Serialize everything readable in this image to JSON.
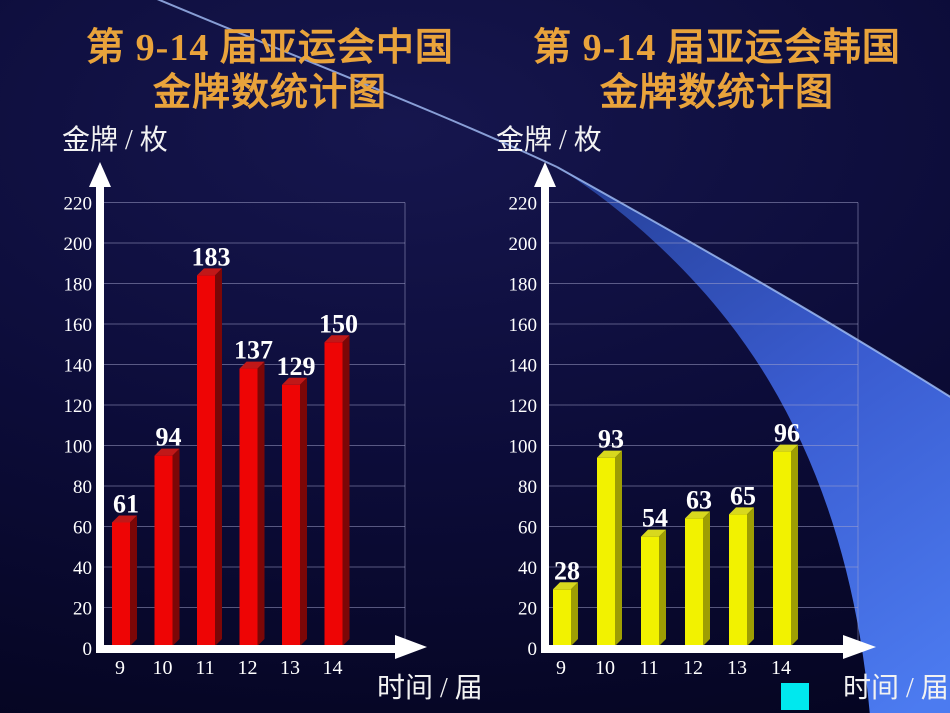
{
  "chart_data": [
    {
      "type": "bar",
      "title": "第 9-14 届亚运会中国金牌数统计图",
      "title_lines": [
        "第 9-14 届亚运会中国",
        "金牌数统计图"
      ],
      "ylabel": "金牌 / 枚",
      "xlabel": "时间 / 届",
      "categories": [
        "9",
        "10",
        "11",
        "12",
        "13",
        "14"
      ],
      "values": [
        61,
        94,
        183,
        137,
        129,
        150
      ],
      "ylim": [
        0,
        220
      ],
      "ytick_step": 20,
      "grid": true,
      "legend_position": "none",
      "bar_colors": {
        "front": "#ee0505",
        "top": "#c01818",
        "side": "#7c0707"
      }
    },
    {
      "type": "bar",
      "title": "第 9-14 届亚运会韩国金牌数统计图",
      "title_lines": [
        "第 9-14 届亚运会韩国",
        "金牌数统计图"
      ],
      "ylabel": "金牌 / 枚",
      "xlabel": "时间 / 届",
      "categories": [
        "9",
        "10",
        "11",
        "12",
        "13",
        "14"
      ],
      "values": [
        28,
        93,
        54,
        63,
        65,
        96
      ],
      "ylim": [
        0,
        220
      ],
      "ytick_step": 20,
      "grid": true,
      "legend_position": "none",
      "bar_colors": {
        "front": "#f2f200",
        "top": "#d8d81e",
        "side": "#9e9e03"
      }
    }
  ],
  "decor": {
    "title_color": "#e9a33b",
    "axis_color": "#ffffff",
    "gridline_color": "rgba(165,165,205,0.5)",
    "legend_swatch_color": "#00e8ee",
    "swoosh_colors": [
      "#253f96",
      "#3a5cd0",
      "#4c7bf0"
    ],
    "swoosh_edge_color": "#9cb6ee",
    "background_center": "#16164e",
    "background_edge": "#04041f"
  }
}
